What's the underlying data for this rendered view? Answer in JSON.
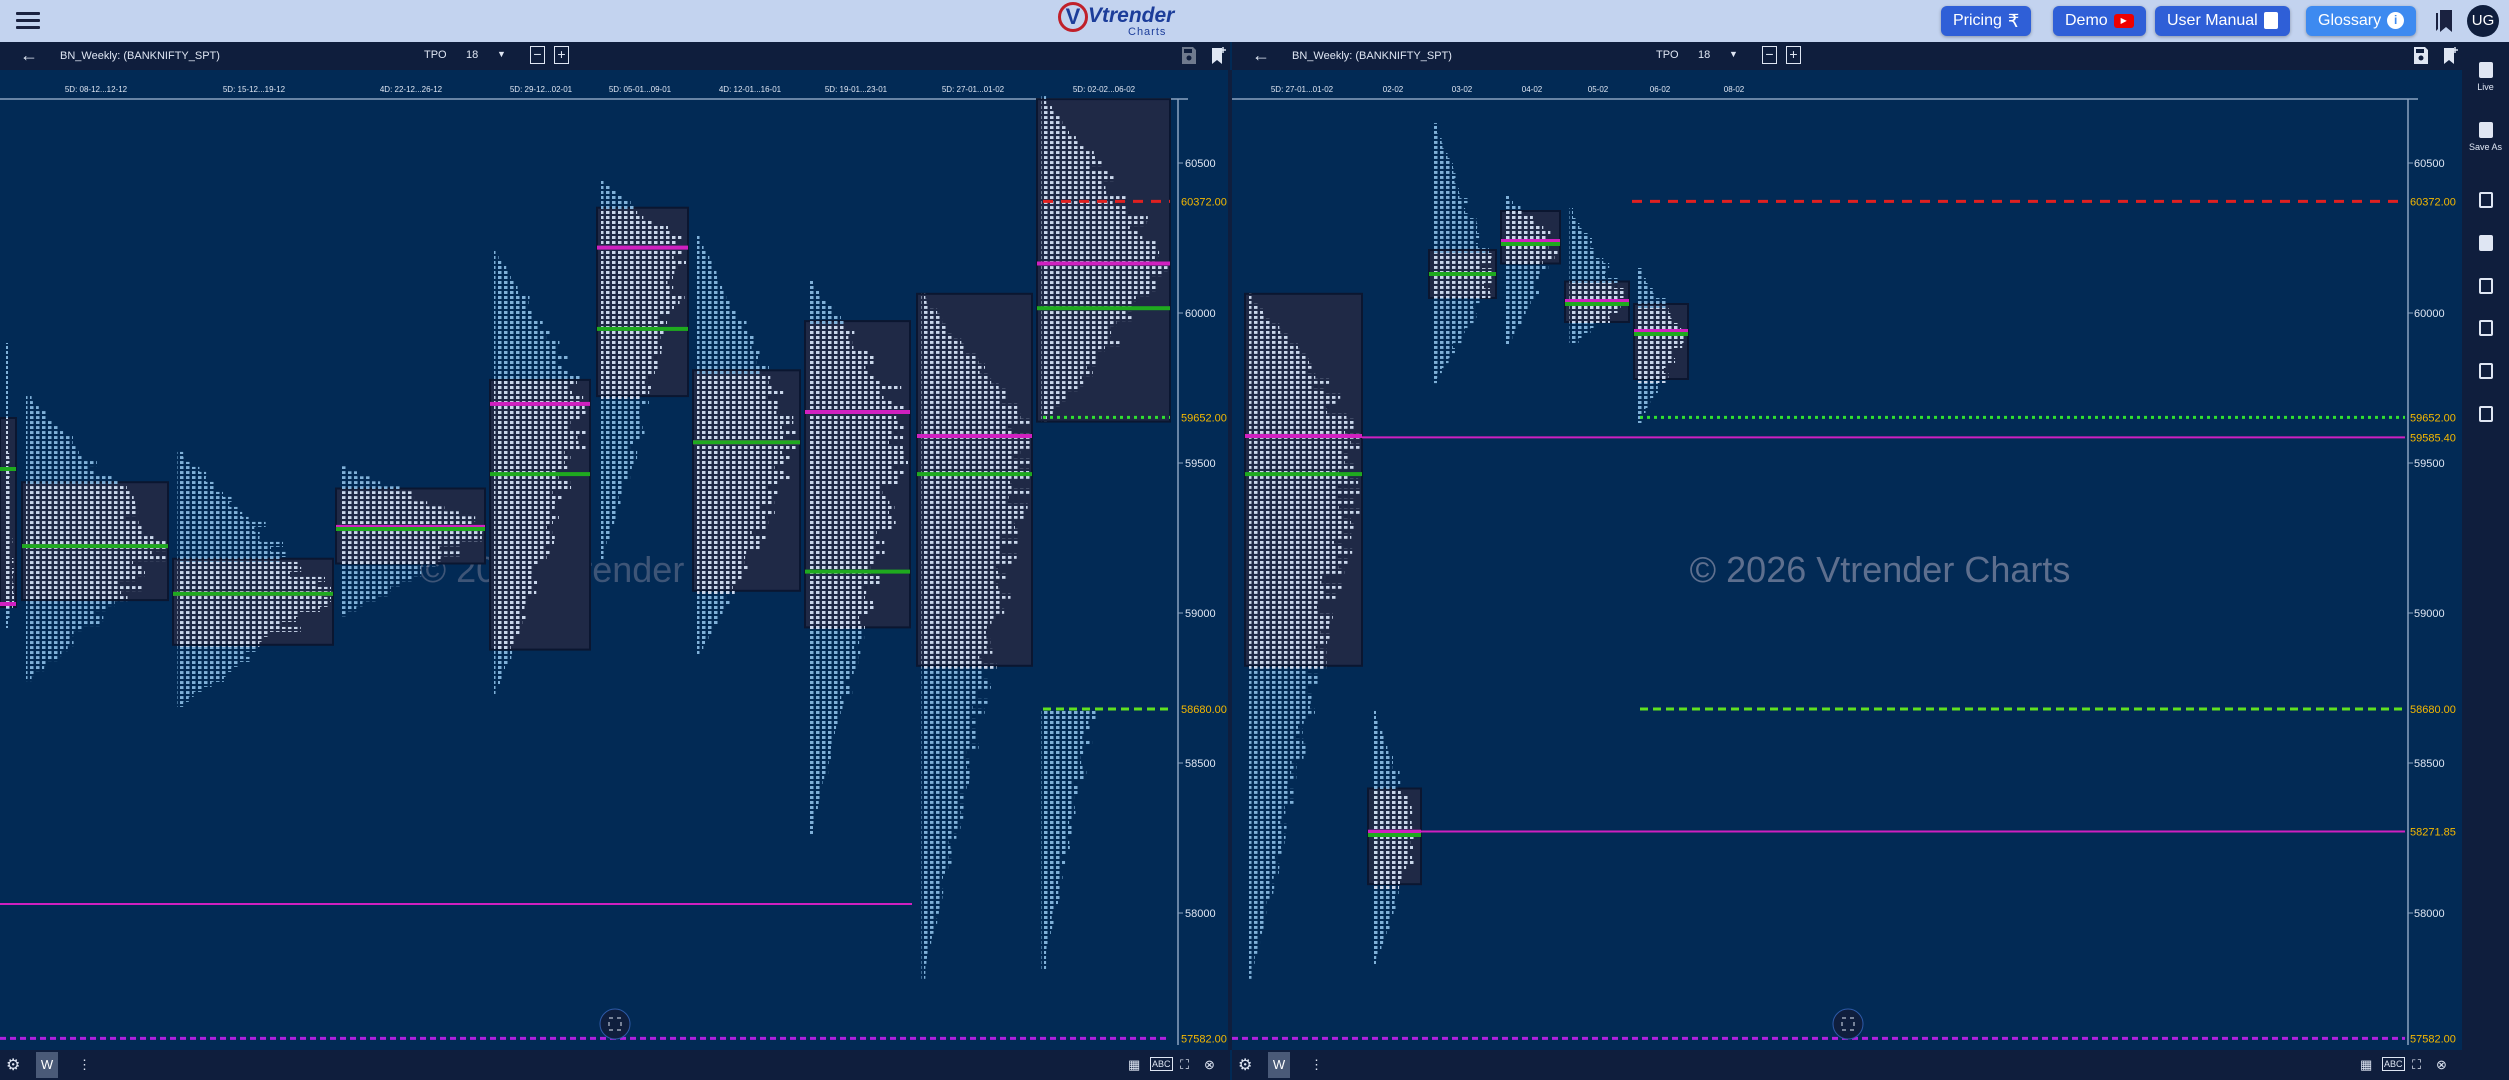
{
  "header": {
    "logo_text": "Vtrender",
    "logo_sub": "Charts",
    "buttons": [
      {
        "label": "Pricing",
        "icon": "rupee-icon"
      },
      {
        "label": "Demo",
        "icon": "youtube-icon"
      },
      {
        "label": "User Manual",
        "icon": "document-icon"
      },
      {
        "label": "Glossary",
        "icon": "info-icon"
      }
    ],
    "avatar": "UG",
    "glyphs": {
      "rupee": "₹",
      "info": "i",
      "play": "▶",
      "back": "←",
      "dropdown": "▼",
      "minus": "−",
      "plus": "+",
      "gear": "⚙",
      "kebab": "⋮",
      "close": "⊗",
      "fullscreen": "⛶"
    }
  },
  "charts": [
    {
      "title": "BN_Weekly: (BANKNIFTY_SPT)",
      "tpo_label": "TPO",
      "tpo_value": "18",
      "period_button": "W"
    },
    {
      "title": "BN_Weekly: (BANKNIFTY_SPT)",
      "tpo_label": "TPO",
      "tpo_value": "18",
      "period_button": "W"
    }
  ],
  "sidebar": {
    "items": [
      {
        "label": "Live",
        "icon": "document-icon"
      },
      {
        "label": "Save As",
        "icon": "save-icon"
      },
      {
        "label": "",
        "icon": "square-icon"
      },
      {
        "label": "",
        "icon": "split-view-icon"
      },
      {
        "label": "",
        "icon": "rows-icon"
      },
      {
        "label": "",
        "icon": "grid-icon"
      },
      {
        "label": "",
        "icon": "columns-icon"
      },
      {
        "label": "",
        "icon": "grid-small-icon"
      }
    ]
  },
  "watermark": "© 2026 Vtrender Charts",
  "colors": {
    "background": "#022a55",
    "profile_box": "#1f2946",
    "poc": "#d020c0",
    "va_mid": "#1faa1f",
    "level_label": "#f5b800",
    "red_level": "#e02020",
    "purple_level": "#b020e0"
  },
  "chart_data": [
    {
      "type": "tpo-profile",
      "price_ticks": [
        60500,
        60000,
        59500,
        59000,
        58500,
        58000
      ],
      "time_labels": [
        "5D: 08-12...12-12",
        "5D: 15-12...19-12",
        "4D: 22-12...26-12",
        "5D: 29-12...02-01",
        "5D: 05-01...09-01",
        "4D: 12-01...16-01",
        "5D: 19-01...23-01",
        "5D: 27-01...01-02",
        "5D: 02-02...06-02"
      ],
      "profiles": [
        {
          "high": 59900,
          "low": 58950,
          "vah": 59650,
          "val": 59020,
          "poc": 59030,
          "mid": 59480
        },
        {
          "high": 59723,
          "low": 58782,
          "vah": 59436,
          "val": 59043,
          "poc": 59223,
          "mid": 59223
        },
        {
          "high": 59537,
          "low": 58702,
          "vah": 59181,
          "val": 58894,
          "poc": 59064,
          "mid": 59064
        },
        {
          "high": 59489,
          "low": 58995,
          "vah": 59415,
          "val": 59165,
          "poc": 59287,
          "mid": 59280
        },
        {
          "high": 60207,
          "low": 58729,
          "vah": 59777,
          "val": 58878,
          "poc": 59697,
          "mid": 59463
        },
        {
          "high": 60441,
          "low": 59181,
          "vah": 60351,
          "val": 59723,
          "poc": 60218,
          "mid": 59947
        },
        {
          "high": 60261,
          "low": 58862,
          "vah": 59809,
          "val": 59074,
          "poc": 59569,
          "mid": 59569
        },
        {
          "high": 60112,
          "low": 58266,
          "vah": 59973,
          "val": 58952,
          "poc": 59670,
          "mid": 59138
        },
        {
          "high": 60064,
          "low": 57787,
          "vah": 60064,
          "val": 58824,
          "poc": 59590,
          "mid": 59463
        },
        {
          "high": 60723,
          "low": 59640,
          "vah": 60713,
          "val": 59638,
          "poc": 60165,
          "mid": 60016,
          "lower_high": 58680,
          "lower_low": 57824
        }
      ],
      "levels": [
        {
          "price": 60372.0,
          "label": "60372.00",
          "style": "red-dashed"
        },
        {
          "price": 59652.0,
          "label": "59652.00",
          "style": "green-dotted"
        },
        {
          "price": 58680.0,
          "label": "58680.00",
          "style": "green-dashed"
        },
        {
          "price": 58030,
          "label": "",
          "style": "magenta-solid"
        },
        {
          "price": 57582.0,
          "label": "57582.00",
          "style": "purple-dashed"
        }
      ]
    },
    {
      "type": "tpo-profile",
      "price_ticks": [
        60500,
        60000,
        59500,
        59000,
        58500,
        58000
      ],
      "time_labels": [
        "5D: 27-01...01-02",
        "02-02",
        "03-02",
        "04-02",
        "05-02",
        "06-02",
        "08-02"
      ],
      "profiles": [
        {
          "high": 60064,
          "low": 57787,
          "vah": 60064,
          "val": 58824,
          "poc": 59590,
          "mid": 59463
        },
        {
          "high": 58680,
          "low": 57830,
          "vah": 58415,
          "val": 58096,
          "poc": 58271,
          "mid": 58260
        },
        {
          "high": 60633,
          "low": 59780,
          "vah": 60210,
          "val": 60050,
          "poc": 60130,
          "mid": 60130
        },
        {
          "high": 60390,
          "low": 59890,
          "vah": 60340,
          "val": 60165,
          "poc": 60240,
          "mid": 60230
        },
        {
          "high": 60350,
          "low": 59900,
          "vah": 60105,
          "val": 59970,
          "poc": 60040,
          "mid": 60030
        },
        {
          "high": 60150,
          "low": 59640,
          "vah": 60030,
          "val": 59780,
          "poc": 59940,
          "mid": 59930
        }
      ],
      "levels": [
        {
          "price": 60372.0,
          "label": "60372.00",
          "style": "red-dashed"
        },
        {
          "price": 59652.0,
          "label": "59652.00",
          "style": "green-dotted"
        },
        {
          "price": 59585.4,
          "label": "59585.40",
          "style": "magenta-solid"
        },
        {
          "price": 58680.0,
          "label": "58680.00",
          "style": "green-dashed"
        },
        {
          "price": 58271.85,
          "label": "58271.85",
          "style": "magenta-solid"
        },
        {
          "price": 57582.0,
          "label": "57582.00",
          "style": "purple-dashed"
        }
      ]
    }
  ]
}
